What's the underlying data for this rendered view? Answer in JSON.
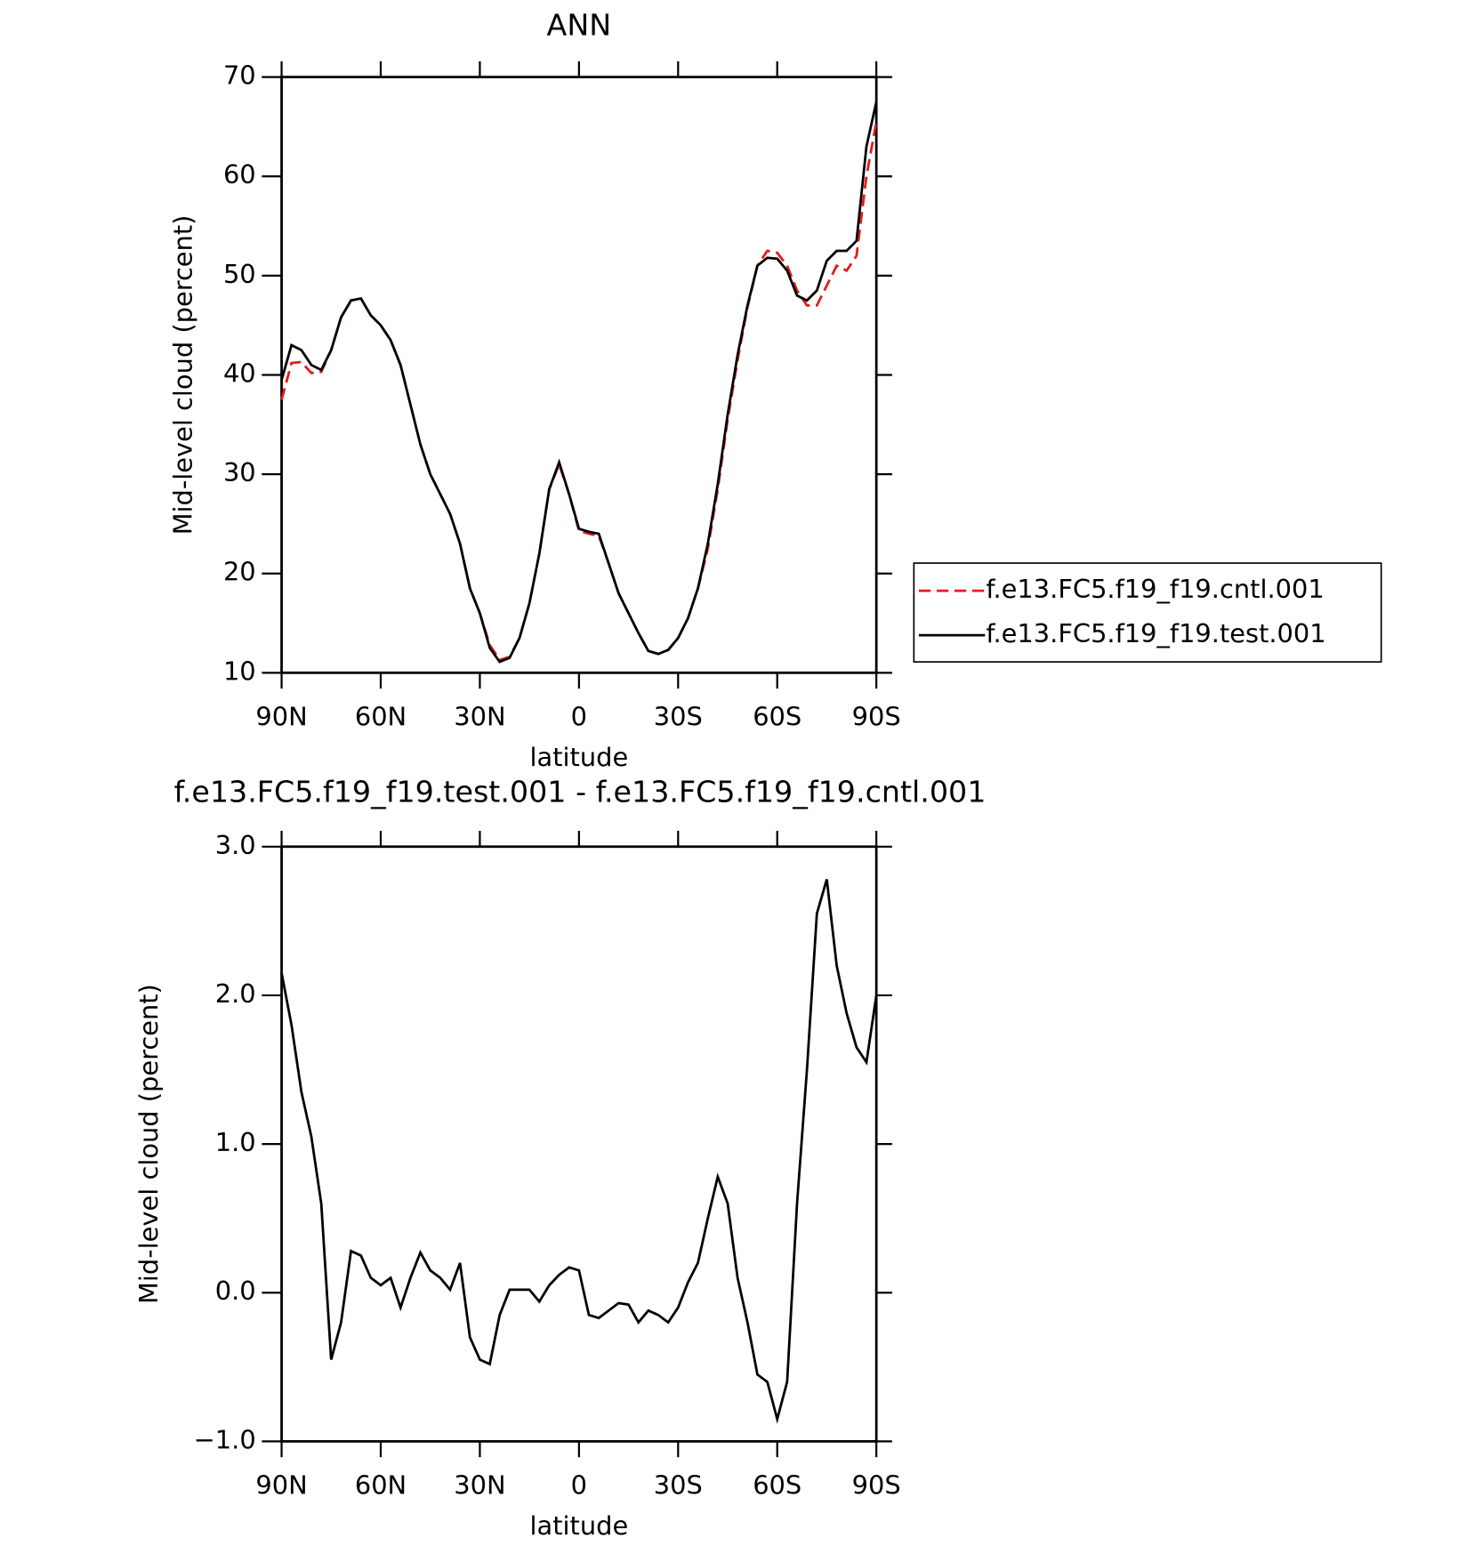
{
  "chart_data": [
    {
      "type": "line",
      "title": "ANN",
      "xlabel": "latitude",
      "ylabel": "Mid-level cloud (percent)",
      "x": [
        90,
        87,
        84,
        81,
        78,
        75,
        72,
        69,
        66,
        63,
        60,
        57,
        54,
        51,
        48,
        45,
        42,
        39,
        36,
        33,
        30,
        27,
        24,
        21,
        18,
        15,
        12,
        9,
        6,
        3,
        0,
        -3,
        -6,
        -9,
        -12,
        -15,
        -18,
        -21,
        -24,
        -27,
        -30,
        -33,
        -36,
        -39,
        -42,
        -45,
        -48,
        -51,
        -54,
        -57,
        -60,
        -63,
        -66,
        -69,
        -72,
        -75,
        -78,
        -81,
        -84,
        -87,
        -90
      ],
      "xlim": [
        90,
        -90
      ],
      "xticks": [
        {
          "value": 90,
          "label": "90N"
        },
        {
          "value": 60,
          "label": "60N"
        },
        {
          "value": 30,
          "label": "30N"
        },
        0,
        {
          "value": -30,
          "label": "30S"
        },
        {
          "value": -60,
          "label": "60S"
        },
        {
          "value": -90,
          "label": "90S"
        }
      ],
      "ylim": [
        10,
        70
      ],
      "yticks": [
        10,
        20,
        30,
        40,
        50,
        60,
        70
      ],
      "legend": "right",
      "series": [
        {
          "name": "f.e13.FC5.f19_f19.cntl.001",
          "color": "#e41a1c",
          "line_style": "dashed",
          "values": [
            37.5,
            41.2,
            41.3,
            40.2,
            40.3,
            42.5,
            45.8,
            47.5,
            47.7,
            46,
            45,
            43.5,
            41,
            37,
            33,
            30,
            28,
            26,
            23,
            18.5,
            16,
            12.8,
            11.3,
            11.6,
            13.5,
            17,
            22,
            28.5,
            31,
            28,
            24.3,
            24,
            23.8,
            21,
            18,
            16,
            14,
            12.2,
            11.9,
            12.3,
            13.5,
            15.5,
            18.5,
            22.5,
            28.5,
            35.5,
            41.5,
            46.8,
            51,
            52.5,
            52.3,
            51,
            48.5,
            47,
            47,
            49,
            51,
            50.5,
            52,
            60,
            65.5
          ]
        },
        {
          "name": "f.e13.FC5.f19_f19.test.001",
          "color": "#000000",
          "line_style": "solid",
          "values": [
            39.5,
            43,
            42.5,
            41,
            40.5,
            42.5,
            45.8,
            47.5,
            47.7,
            46,
            45,
            43.5,
            41,
            37,
            33,
            30,
            28,
            26,
            23,
            18.5,
            16,
            12.5,
            11.1,
            11.5,
            13.5,
            17,
            22,
            28.5,
            31.2,
            28,
            24.5,
            24.2,
            24,
            21,
            18,
            16,
            14,
            12.2,
            11.9,
            12.3,
            13.5,
            15.5,
            18.5,
            23,
            29,
            36,
            42,
            47,
            51,
            51.8,
            51.7,
            50.5,
            48,
            47.5,
            48.5,
            51.5,
            52.5,
            52.5,
            53.5,
            63,
            67.5
          ]
        }
      ]
    },
    {
      "type": "line",
      "title": "f.e13.FC5.f19_f19.test.001 - f.e13.FC5.f19_f19.cntl.001",
      "xlabel": "latitude",
      "ylabel": "Mid-level cloud (percent)",
      "x": [
        90,
        87,
        84,
        81,
        78,
        75,
        72,
        69,
        66,
        63,
        60,
        57,
        54,
        51,
        48,
        45,
        42,
        39,
        36,
        33,
        30,
        27,
        24,
        21,
        18,
        15,
        12,
        9,
        6,
        3,
        0,
        -3,
        -6,
        -9,
        -12,
        -15,
        -18,
        -21,
        -24,
        -27,
        -30,
        -33,
        -36,
        -39,
        -42,
        -45,
        -48,
        -51,
        -54,
        -57,
        -60,
        -63,
        -66,
        -69,
        -72,
        -75,
        -78,
        -81,
        -84,
        -87,
        -90
      ],
      "xlim": [
        90,
        -90
      ],
      "xticks": [
        {
          "value": 90,
          "label": "90N"
        },
        {
          "value": 60,
          "label": "60N"
        },
        {
          "value": 30,
          "label": "30N"
        },
        0,
        {
          "value": -30,
          "label": "30S"
        },
        {
          "value": -60,
          "label": "60S"
        },
        {
          "value": -90,
          "label": "90S"
        }
      ],
      "ylim": [
        -1,
        3
      ],
      "yticks": [
        {
          "value": -1,
          "label": "−1.0"
        },
        {
          "value": 0,
          "label": "0.0"
        },
        {
          "value": 1,
          "label": "1.0"
        },
        {
          "value": 2,
          "label": "2.0"
        },
        {
          "value": 3,
          "label": "3.0"
        }
      ],
      "series": [
        {
          "color": "#000000",
          "values": [
            2.15,
            1.8,
            1.35,
            1.05,
            0.6,
            -0.45,
            -0.2,
            0.28,
            0.25,
            0.1,
            0.05,
            0.1,
            -0.1,
            0.1,
            0.27,
            0.15,
            0.1,
            0.02,
            0.2,
            -0.3,
            -0.45,
            -0.48,
            -0.15,
            0.02,
            0.02,
            0.02,
            -0.06,
            0.05,
            0.12,
            0.17,
            0.15,
            -0.15,
            -0.17,
            -0.12,
            -0.07,
            -0.08,
            -0.2,
            -0.12,
            -0.15,
            -0.2,
            -0.1,
            0.07,
            0.2,
            0.5,
            0.78,
            0.6,
            0.1,
            -0.2,
            -0.55,
            -0.6,
            -0.85,
            -0.6,
            0.6,
            1.5,
            2.55,
            2.78,
            2.2,
            1.88,
            1.65,
            1.55,
            2.0
          ]
        }
      ]
    }
  ]
}
